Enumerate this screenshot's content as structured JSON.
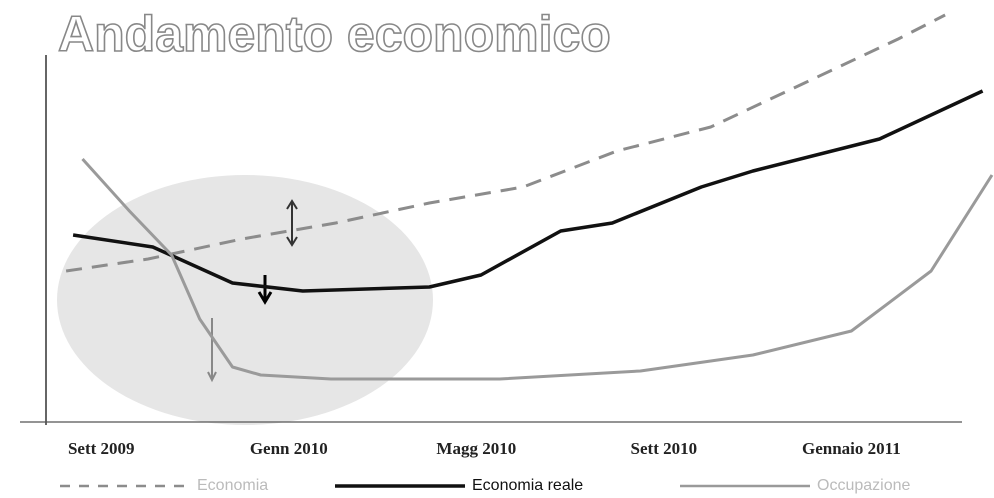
{
  "chart_data": {
    "type": "line",
    "title": "Andamento economico",
    "xlim": [
      -1.2,
      19
    ],
    "ylim": [
      0,
      104
    ],
    "xticks": [
      {
        "value": 0,
        "label": "Sett 2009"
      },
      {
        "value": 4,
        "label": "Genn 2010"
      },
      {
        "value": 8,
        "label": "Magg 2010"
      },
      {
        "value": 12,
        "label": "Sett 2010"
      },
      {
        "value": 16,
        "label": "Gennaio 2011"
      }
    ],
    "legend": "bottom",
    "series": [
      {
        "name": "Economia",
        "color": "#8c8c8c",
        "dash": true,
        "x": [
          -0.75,
          1,
          3,
          5,
          7,
          9,
          11,
          13,
          15,
          17,
          18
        ],
        "values": [
          36,
          39,
          44,
          48,
          53,
          57,
          66,
          72,
          83,
          94,
          100
        ]
      },
      {
        "name": "Economia reale",
        "color": "#111111",
        "dash": false,
        "x": [
          -0.6,
          1.1,
          2.8,
          4.3,
          7,
          8.1,
          9.8,
          10.9,
          12.8,
          13.9,
          16.6,
          18.8
        ],
        "values": [
          45,
          42,
          33,
          31,
          32,
          35,
          46,
          48,
          57,
          61,
          69,
          81
        ]
      },
      {
        "name": "Occupazione",
        "color": "#9a9a9a",
        "dash": false,
        "x": [
          -0.4,
          0.6,
          1.5,
          2.1,
          2.8,
          3.4,
          4.9,
          8.5,
          11.5,
          13.9,
          16,
          17.7,
          19
        ],
        "values": [
          64,
          51,
          40,
          24,
          12,
          10,
          9,
          9,
          11,
          15,
          21,
          36,
          60
        ]
      }
    ]
  }
}
